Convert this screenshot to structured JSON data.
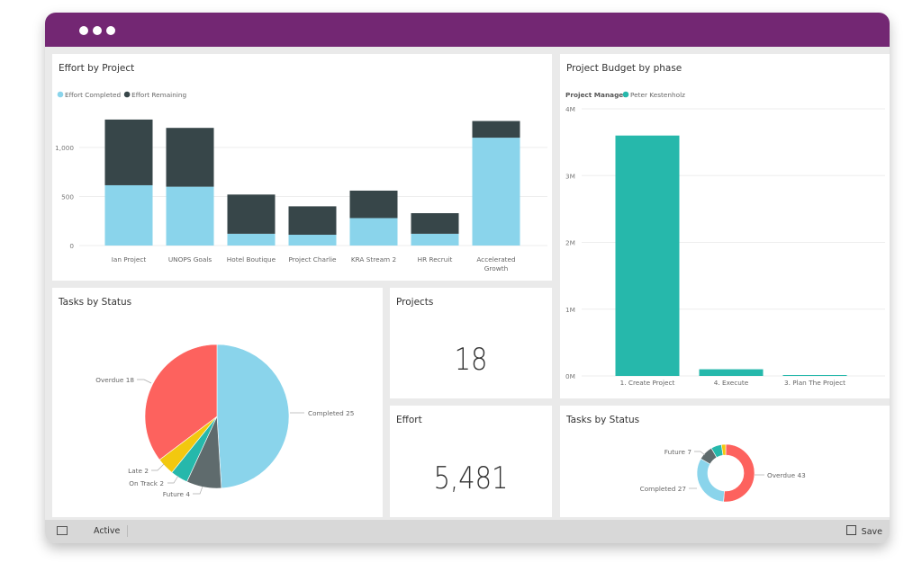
{
  "window": {
    "title_color": "#732773"
  },
  "tiles": {
    "effort_by_project": {
      "title": "Effort by Project"
    },
    "budget_by_phase": {
      "title": "Project Budget by phase"
    },
    "tasks_pie": {
      "title": "Tasks by Status"
    },
    "projects": {
      "title": "Projects",
      "value": "18"
    },
    "effort": {
      "title": "Effort",
      "value": "5,481"
    },
    "tasks_donut": {
      "title": "Tasks by Status"
    }
  },
  "bottom_bar": {
    "status": "Active",
    "save_label": "Save",
    "expand_icon": "expand-icon",
    "save_icon": "save-icon"
  },
  "chart_data": [
    {
      "type": "bar",
      "stacked": true,
      "title": "Effort by Project",
      "categories": [
        "Ian Project",
        "UNOPS Goals",
        "Hotel Boutique",
        "Project Charlie",
        "KRA Stream 2",
        "HR Recruit",
        "Accelerated Growth"
      ],
      "series": [
        {
          "name": "Effort Completed",
          "color": "#8ad4eb",
          "values": [
            615,
            600,
            120,
            110,
            280,
            120,
            1100
          ]
        },
        {
          "name": "Effort Remaining",
          "color": "#374649",
          "values": [
            670,
            600,
            400,
            290,
            280,
            210,
            170
          ]
        }
      ],
      "yticks": [
        "0",
        "500",
        "1,000"
      ],
      "ylim": [
        0,
        1300
      ],
      "grid": true,
      "legend": "top-left"
    },
    {
      "type": "bar",
      "title": "Project Budget by phase",
      "legend_title": "Project Manager",
      "categories": [
        "1. Create Project",
        "4. Execute",
        "3. Plan The Project"
      ],
      "series": [
        {
          "name": "Peter Kestenholz",
          "color": "#26b8ab",
          "values": [
            3600000,
            100000,
            10000
          ]
        }
      ],
      "yticks": [
        "0M",
        "1M",
        "2M",
        "3M",
        "4M"
      ],
      "ylim": [
        0,
        4000000
      ],
      "grid": true,
      "legend": "top-left"
    },
    {
      "type": "pie",
      "title": "Tasks by Status",
      "slices": [
        {
          "label": "Completed 25",
          "value": 25,
          "color": "#8ad4eb"
        },
        {
          "label": "Future 4",
          "value": 4,
          "color": "#5f6b6d"
        },
        {
          "label": "On Track 2",
          "value": 2,
          "color": "#26b8ab"
        },
        {
          "label": "Late 2",
          "value": 2,
          "color": "#f2c80f"
        },
        {
          "label": "Overdue 18",
          "value": 18,
          "color": "#fd625e"
        }
      ]
    },
    {
      "type": "pie",
      "donut": true,
      "title": "Tasks by Status",
      "slices": [
        {
          "label": "Overdue 43",
          "value": 43,
          "color": "#fd625e"
        },
        {
          "label": "Completed 27",
          "value": 27,
          "color": "#8ad4eb"
        },
        {
          "label": "Future 7",
          "value": 7,
          "color": "#5f6b6d"
        },
        {
          "label": "",
          "value": 5,
          "color": "#26b8ab"
        },
        {
          "label": "",
          "value": 2,
          "color": "#f2c80f"
        }
      ]
    }
  ]
}
